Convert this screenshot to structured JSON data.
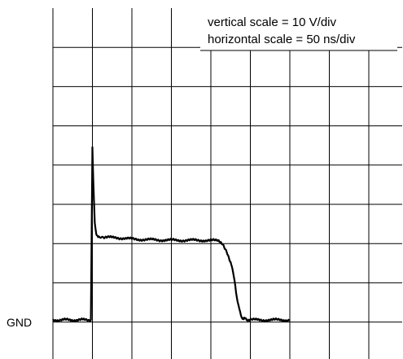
{
  "annotations": {
    "vertical_scale": "vertical scale = 10 V/div",
    "horizontal_scale": "horizontal scale = 50 ns/div",
    "ground_label": "GND"
  },
  "chart_data": {
    "type": "line",
    "title": "",
    "xlabel": "",
    "ylabel": "",
    "grid": true,
    "x_units": "ns",
    "y_units": "V",
    "xlim": [
      0,
      300
    ],
    "ylim": [
      0,
      40
    ],
    "series": [
      {
        "x": [
          0,
          48,
          49,
          50,
          51,
          53,
          55,
          58,
          65,
          80,
          100,
          130,
          160,
          190,
          210,
          215,
          220,
          225,
          228,
          230,
          232,
          234,
          236,
          238,
          240,
          243,
          246,
          250,
          260,
          275,
          290,
          300
        ],
        "y": [
          0,
          0,
          20,
          44,
          36,
          25,
          22,
          21,
          21,
          21,
          20.6,
          20.4,
          20.3,
          20.3,
          20.2,
          19.5,
          17.5,
          14.5,
          12.5,
          10,
          7,
          4.5,
          2.5,
          1.2,
          0.6,
          0.3,
          0.1,
          0,
          0,
          0,
          0,
          0
        ]
      }
    ]
  }
}
